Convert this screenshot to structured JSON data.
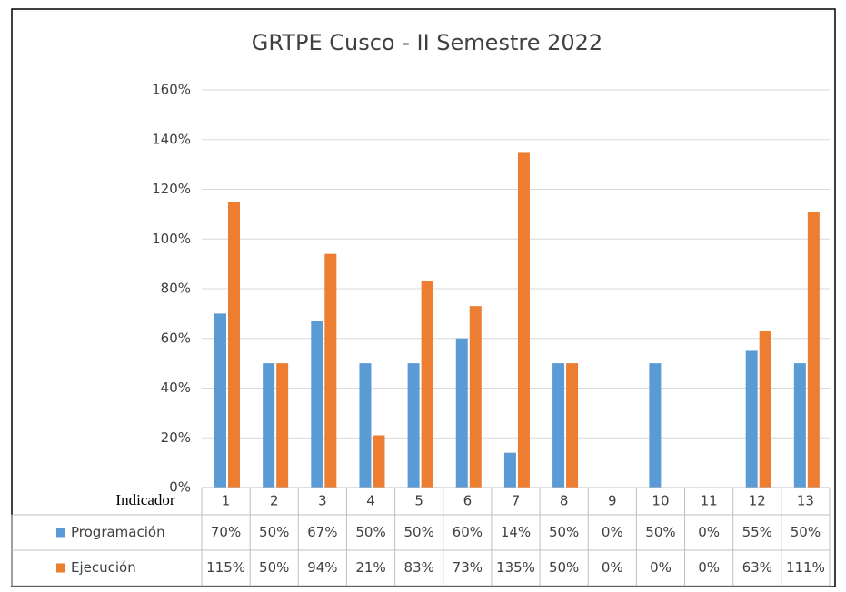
{
  "chart_data": {
    "type": "bar",
    "title": "GRTPE Cusco - II Semestre 2022",
    "xlabel": "Indicador",
    "categories": [
      "1",
      "2",
      "3",
      "4",
      "5",
      "6",
      "7",
      "8",
      "9",
      "10",
      "11",
      "12",
      "13"
    ],
    "series": [
      {
        "name": "Programación",
        "color": "#5b9bd5",
        "values": [
          70,
          50,
          67,
          50,
          50,
          60,
          14,
          50,
          0,
          50,
          0,
          55,
          50
        ],
        "value_labels": [
          "70%",
          "50%",
          "67%",
          "50%",
          "50%",
          "60%",
          "14%",
          "50%",
          "0%",
          "50%",
          "0%",
          "55%",
          "50%"
        ]
      },
      {
        "name": "Ejecución",
        "color": "#ed7d31",
        "values": [
          115,
          50,
          94,
          21,
          83,
          73,
          135,
          50,
          0,
          0,
          0,
          63,
          111
        ],
        "value_labels": [
          "115%",
          "50%",
          "94%",
          "21%",
          "83%",
          "73%",
          "135%",
          "50%",
          "0%",
          "0%",
          "0%",
          "63%",
          "111%"
        ]
      }
    ],
    "ylim": [
      0,
      160
    ],
    "yticks": [
      {
        "value": 0,
        "label": "0%"
      },
      {
        "value": 20,
        "label": "20%"
      },
      {
        "value": 40,
        "label": "40%"
      },
      {
        "value": 60,
        "label": "60%"
      },
      {
        "value": 80,
        "label": "80%"
      },
      {
        "value": 100,
        "label": "100%"
      },
      {
        "value": 120,
        "label": "120%"
      },
      {
        "value": 140,
        "label": "140%"
      },
      {
        "value": 160,
        "label": "160%"
      }
    ],
    "grid": true
  }
}
